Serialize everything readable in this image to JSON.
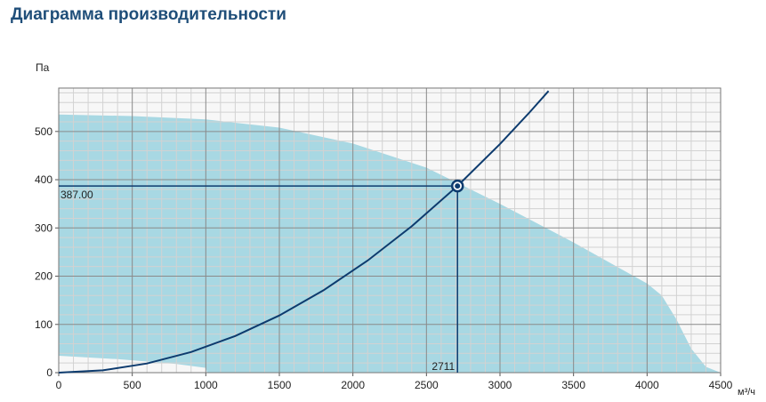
{
  "page": {
    "title": "Диаграмма производительности"
  },
  "colors": {
    "title": "#1f4e79",
    "area_fill": "#a8d8e3",
    "curve": "#0d3b6e",
    "grid_major": "#8a8a8a",
    "grid_minor": "#d2d2d2",
    "plot_background": "#f7f7f7"
  },
  "chart_data": {
    "type": "area",
    "title": "Диаграмма производительности",
    "xlabel": "м³/ч",
    "ylabel": "Па",
    "xlim": [
      0,
      4500
    ],
    "ylim": [
      0,
      590
    ],
    "x_ticks": [
      0,
      500,
      1000,
      1500,
      2000,
      2500,
      3000,
      3500,
      4000,
      4500
    ],
    "y_ticks": [
      0,
      100,
      200,
      300,
      400,
      500
    ],
    "grid": true,
    "fan_operating_area": {
      "upper": [
        [
          0,
          535
        ],
        [
          500,
          532
        ],
        [
          1000,
          525
        ],
        [
          1500,
          508
        ],
        [
          2000,
          475
        ],
        [
          2500,
          425
        ],
        [
          3000,
          350
        ],
        [
          3500,
          270
        ],
        [
          4000,
          185
        ],
        [
          4100,
          160
        ],
        [
          4200,
          110
        ],
        [
          4300,
          50
        ],
        [
          4400,
          12
        ],
        [
          4500,
          0
        ]
      ],
      "lower": [
        [
          0,
          35
        ],
        [
          400,
          28
        ],
        [
          800,
          18
        ],
        [
          1000,
          10
        ],
        [
          1010,
          0
        ]
      ]
    },
    "system_curve": {
      "points": [
        [
          0,
          0
        ],
        [
          300,
          4.8
        ],
        [
          600,
          19.0
        ],
        [
          900,
          42.7
        ],
        [
          1200,
          75.9
        ],
        [
          1500,
          118.5
        ],
        [
          1800,
          170.7
        ],
        [
          2100,
          232.3
        ],
        [
          2400,
          303.4
        ],
        [
          2711,
          387.0
        ],
        [
          3000,
          474.0
        ],
        [
          3200,
          539.3
        ],
        [
          3330,
          584.0
        ]
      ]
    },
    "operating_point": {
      "flow": 2711,
      "pressure": 387.0,
      "flow_label": "2711",
      "pressure_label": "387.00"
    }
  }
}
